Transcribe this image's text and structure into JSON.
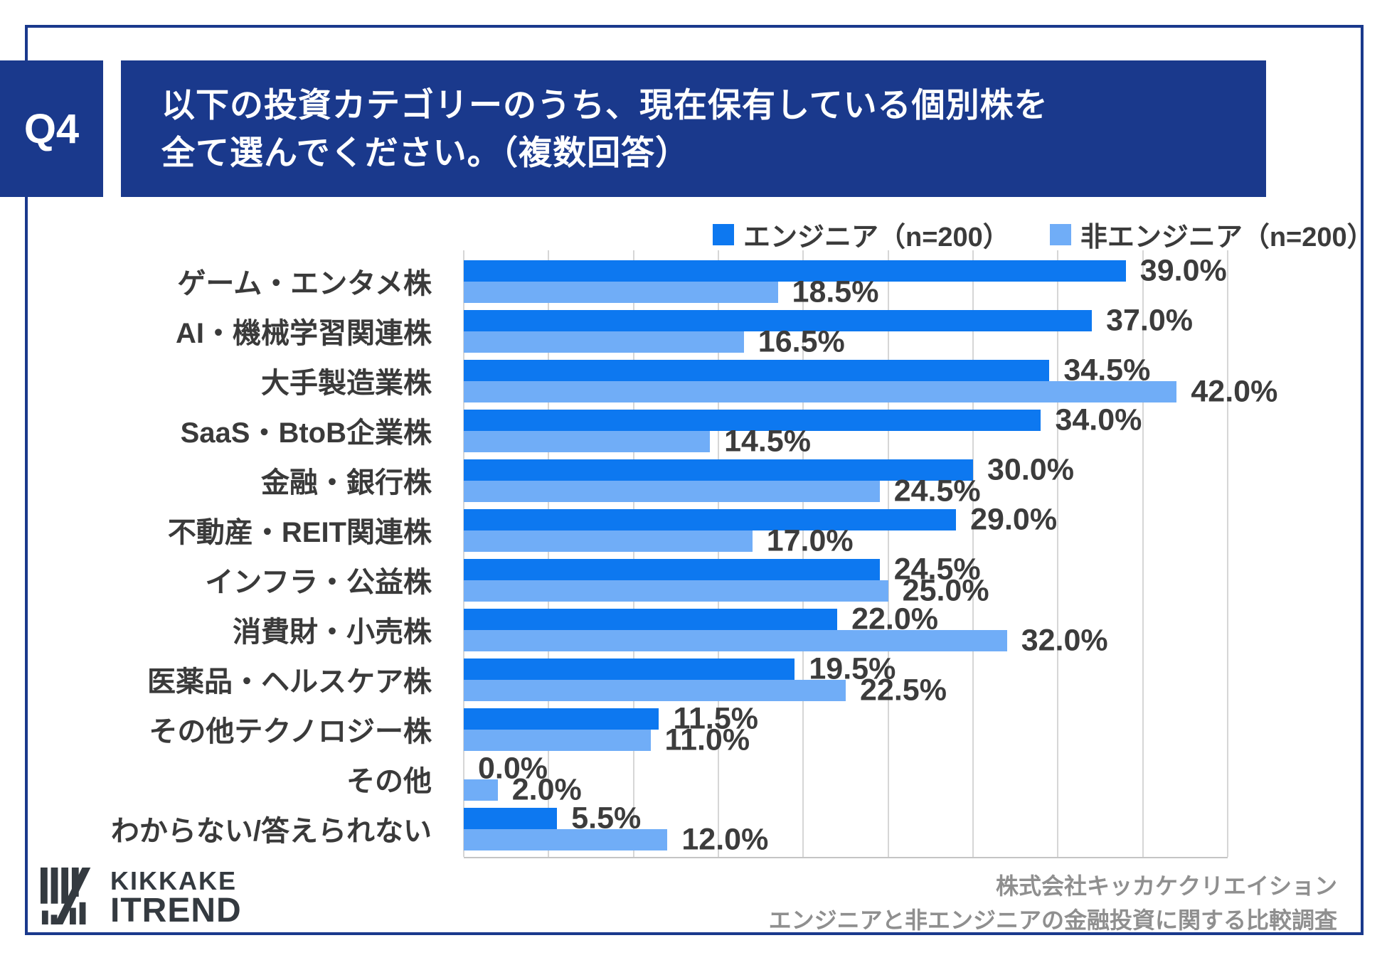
{
  "colors": {
    "navy": "#1A398C",
    "engineer_blue": "#0D78F0",
    "non_engineer_blue": "#70ADF7",
    "grid": "#D6D6D6",
    "text_dark": "#3C3C3C",
    "footer_gray": "#8F8F8F",
    "logo_charcoal": "#343A40"
  },
  "question": {
    "badge": "Q4",
    "title_line1": "以下の投資カテゴリーのうち、現在保有している個別株を",
    "title_line2": "全て選んでください。（複数回答）"
  },
  "chart_data": {
    "type": "bar",
    "orientation": "horizontal",
    "title": "以下の投資カテゴリーのうち、現在保有している個別株を全て選んでください。（複数回答）",
    "categories": [
      "ゲーム・エンタメ株",
      "AI・機械学習関連株",
      "大手製造業株",
      "SaaS・BtoB企業株",
      "金融・銀行株",
      "不動産・REIT関連株",
      "インフラ・公益株",
      "消費財・小売株",
      "医薬品・ヘルスケア株",
      "その他テクノロジー株",
      "その他",
      "わからない/答えられない"
    ],
    "series": [
      {
        "name": "エンジニア（n=200）",
        "color": "#0D78F0",
        "values": [
          39.0,
          37.0,
          34.5,
          34.0,
          30.0,
          29.0,
          24.5,
          22.0,
          19.5,
          11.5,
          0.0,
          5.5
        ]
      },
      {
        "name": "非エンジニア（n=200）",
        "color": "#70ADF7",
        "values": [
          18.5,
          16.5,
          42.0,
          14.5,
          24.5,
          17.0,
          25.0,
          32.0,
          22.5,
          11.0,
          2.0,
          12.0
        ]
      }
    ],
    "value_decimals": 1,
    "value_suffix": "%",
    "xlim": [
      0,
      45
    ],
    "gridline_step": 5,
    "grid": true,
    "legend_position": "top-right"
  },
  "footer": {
    "logo_top": "KIKKAKE",
    "logo_bottom": "ITREND",
    "credit_line1": "株式会社キッカケクリエイション",
    "credit_line2": "エンジニアと非エンジニアの金融投資に関する比較調査"
  }
}
